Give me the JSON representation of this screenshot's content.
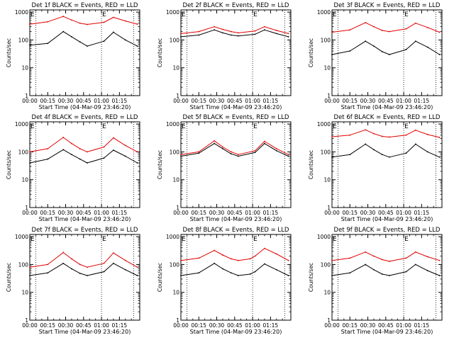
{
  "chart_data": [
    {
      "type": "line",
      "title": "Det 1f BLACK = Events, RED = LLD",
      "xlabel": "Start Time (04-Mar-09 23:46:20)",
      "ylabel": "Counts/sec",
      "x_tick_labels": [
        "00:00",
        "00:15",
        "00:30",
        "00:45",
        "01:00",
        "01:15"
      ],
      "y_tick_labels": [
        "1",
        "10",
        "100",
        "1000"
      ],
      "ylim": [
        1,
        1200
      ],
      "yscale": "log",
      "grid": false,
      "markers": [
        "E",
        "E"
      ],
      "series": [
        {
          "color": "#000000",
          "x": [
            0,
            15,
            28,
            35,
            42,
            48,
            62,
            70,
            80,
            90
          ],
          "y": [
            65,
            75,
            200,
            130,
            85,
            60,
            90,
            190,
            100,
            60
          ]
        },
        {
          "color": "#e00000",
          "x": [
            0,
            15,
            28,
            35,
            42,
            48,
            62,
            70,
            80,
            90
          ],
          "y": [
            370,
            450,
            700,
            520,
            400,
            360,
            430,
            650,
            480,
            370
          ]
        }
      ]
    },
    {
      "type": "line",
      "title": "Det 2f BLACK = Events, RED = LLD",
      "xlabel": "Start Time (04-Mar-09 23:46:20)",
      "ylabel": "Counts/sec",
      "x_tick_labels": [
        "00:00",
        "00:15",
        "00:30",
        "00:45",
        "01:00",
        "01:15"
      ],
      "y_tick_labels": [
        "1",
        "10",
        "100",
        "1000"
      ],
      "ylim": [
        1,
        1200
      ],
      "yscale": "log",
      "grid": false,
      "markers": [
        "E",
        "E"
      ],
      "series": [
        {
          "color": "#000000",
          "x": [
            0,
            15,
            28,
            35,
            42,
            48,
            62,
            70,
            80,
            90
          ],
          "y": [
            130,
            150,
            230,
            180,
            150,
            140,
            160,
            230,
            170,
            130
          ]
        },
        {
          "color": "#e00000",
          "x": [
            0,
            15,
            28,
            35,
            42,
            48,
            62,
            70,
            80,
            90
          ],
          "y": [
            170,
            200,
            300,
            240,
            200,
            180,
            210,
            300,
            220,
            170
          ]
        }
      ]
    },
    {
      "type": "line",
      "title": "Det 3f BLACK = Events, RED = LLD",
      "xlabel": "Start Time (04-Mar-09 23:46:20)",
      "ylabel": "Counts/sec",
      "x_tick_labels": [
        "00:00",
        "00:15",
        "00:30",
        "00:45",
        "01:00",
        "01:15"
      ],
      "y_tick_labels": [
        "1",
        "10",
        "100",
        "1000"
      ],
      "ylim": [
        1,
        1200
      ],
      "yscale": "log",
      "grid": false,
      "markers": [
        "E",
        "E"
      ],
      "series": [
        {
          "color": "#000000",
          "x": [
            0,
            15,
            28,
            35,
            42,
            48,
            62,
            70,
            80,
            90
          ],
          "y": [
            30,
            40,
            90,
            60,
            38,
            30,
            45,
            90,
            55,
            30
          ]
        },
        {
          "color": "#e00000",
          "x": [
            0,
            15,
            28,
            35,
            42,
            48,
            62,
            70,
            80,
            90
          ],
          "y": [
            190,
            230,
            420,
            300,
            220,
            200,
            250,
            400,
            280,
            190
          ]
        }
      ]
    },
    {
      "type": "line",
      "title": "Det 4f BLACK = Events, RED = LLD",
      "xlabel": "Start Time (04-Mar-09 23:46:20)",
      "ylabel": "Counts/sec",
      "x_tick_labels": [
        "00:00",
        "00:15",
        "00:30",
        "00:45",
        "01:00",
        "01:15"
      ],
      "y_tick_labels": [
        "1",
        "10",
        "100",
        "1000"
      ],
      "ylim": [
        1,
        1200
      ],
      "yscale": "log",
      "grid": false,
      "markers": [
        "E",
        "E"
      ],
      "series": [
        {
          "color": "#000000",
          "x": [
            0,
            15,
            28,
            35,
            42,
            48,
            62,
            70,
            80,
            90
          ],
          "y": [
            40,
            55,
            120,
            80,
            55,
            40,
            60,
            115,
            70,
            40
          ]
        },
        {
          "color": "#e00000",
          "x": [
            0,
            15,
            28,
            35,
            42,
            48,
            62,
            70,
            80,
            90
          ],
          "y": [
            100,
            130,
            330,
            200,
            130,
            100,
            150,
            320,
            170,
            100
          ]
        }
      ]
    },
    {
      "type": "line",
      "title": "Det 5f BLACK = Events, RED = LLD",
      "xlabel": "Start Time (04-Mar-09 23:46:20)",
      "ylabel": "Counts/sec",
      "x_tick_labels": [
        "00:00",
        "00:15",
        "00:30",
        "00:45",
        "01:00",
        "01:15"
      ],
      "y_tick_labels": [
        "1",
        "10",
        "100",
        "1000"
      ],
      "ylim": [
        1,
        1200
      ],
      "yscale": "log",
      "grid": false,
      "markers": [
        "E",
        "E"
      ],
      "series": [
        {
          "color": "#000000",
          "x": [
            0,
            15,
            28,
            35,
            42,
            48,
            62,
            70,
            80,
            90
          ],
          "y": [
            70,
            90,
            200,
            130,
            85,
            70,
            95,
            200,
            110,
            70
          ]
        },
        {
          "color": "#e00000",
          "x": [
            0,
            15,
            28,
            35,
            42,
            48,
            62,
            70,
            80,
            90
          ],
          "y": [
            80,
            100,
            250,
            150,
            100,
            80,
            110,
            240,
            130,
            80
          ]
        }
      ]
    },
    {
      "type": "line",
      "title": "Det 6f BLACK = Events, RED = LLD",
      "xlabel": "Start Time (04-Mar-09 23:46:20)",
      "ylabel": "Counts/sec",
      "x_tick_labels": [
        "00:00",
        "00:15",
        "00:30",
        "00:45",
        "01:00",
        "01:15"
      ],
      "y_tick_labels": [
        "1",
        "10",
        "100",
        "1000"
      ],
      "ylim": [
        1,
        1200
      ],
      "yscale": "log",
      "grid": false,
      "markers": [
        "E",
        "E"
      ],
      "series": [
        {
          "color": "#000000",
          "x": [
            0,
            15,
            28,
            35,
            42,
            48,
            62,
            70,
            80,
            90
          ],
          "y": [
            65,
            80,
            190,
            120,
            80,
            65,
            90,
            190,
            100,
            65
          ]
        },
        {
          "color": "#e00000",
          "x": [
            0,
            15,
            28,
            35,
            42,
            48,
            62,
            70,
            80,
            90
          ],
          "y": [
            350,
            400,
            620,
            450,
            360,
            340,
            400,
            600,
            420,
            330
          ]
        }
      ]
    },
    {
      "type": "line",
      "title": "Det 7f BLACK = Events, RED = LLD",
      "xlabel": "Start Time (04-Mar-09 23:46:20)",
      "ylabel": "Counts/sec",
      "x_tick_labels": [
        "00:00",
        "00:15",
        "00:30",
        "00:45",
        "01:00",
        "01:15"
      ],
      "y_tick_labels": [
        "1",
        "10",
        "100",
        "1000"
      ],
      "ylim": [
        1,
        1200
      ],
      "yscale": "log",
      "grid": false,
      "markers": [
        "E",
        "E"
      ],
      "series": [
        {
          "color": "#000000",
          "x": [
            0,
            15,
            28,
            35,
            42,
            48,
            62,
            70,
            80,
            90
          ],
          "y": [
            40,
            50,
            110,
            70,
            48,
            40,
            55,
            110,
            65,
            40
          ]
        },
        {
          "color": "#e00000",
          "x": [
            0,
            15,
            28,
            35,
            42,
            48,
            62,
            70,
            80,
            90
          ],
          "y": [
            80,
            100,
            270,
            160,
            100,
            80,
            110,
            260,
            140,
            80
          ]
        }
      ]
    },
    {
      "type": "line",
      "title": "Det 8f BLACK = Events, RED = LLD",
      "xlabel": "Start Time (04-Mar-09 23:46:20)",
      "ylabel": "Counts/sec",
      "x_tick_labels": [
        "00:00",
        "00:15",
        "00:30",
        "00:45",
        "01:00",
        "01:15"
      ],
      "y_tick_labels": [
        "1",
        "10",
        "100",
        "1000"
      ],
      "ylim": [
        1,
        1200
      ],
      "yscale": "log",
      "grid": false,
      "markers": [
        "E",
        "E"
      ],
      "series": [
        {
          "color": "#000000",
          "x": [
            0,
            15,
            28,
            35,
            42,
            48,
            58,
            62,
            70,
            80,
            90
          ],
          "y": [
            40,
            50,
            110,
            70,
            50,
            40,
            45,
            55,
            105,
            65,
            40
          ]
        },
        {
          "color": "#e00000",
          "x": [
            0,
            15,
            28,
            35,
            42,
            48,
            58,
            62,
            70,
            80,
            90
          ],
          "y": [
            140,
            170,
            320,
            220,
            160,
            140,
            160,
            200,
            380,
            240,
            140
          ]
        }
      ]
    },
    {
      "type": "line",
      "title": "Det 9f BLACK = Events, RED = LLD",
      "xlabel": "Start Time (04-Mar-09 23:46:20)",
      "ylabel": "Counts/sec",
      "x_tick_labels": [
        "00:00",
        "00:15",
        "00:30",
        "00:45",
        "01:00",
        "01:15"
      ],
      "y_tick_labels": [
        "1",
        "10",
        "100",
        "1000"
      ],
      "ylim": [
        1,
        1200
      ],
      "yscale": "log",
      "grid": false,
      "markers": [
        "E",
        "E"
      ],
      "series": [
        {
          "color": "#000000",
          "x": [
            0,
            15,
            28,
            35,
            42,
            48,
            62,
            70,
            80,
            90
          ],
          "y": [
            40,
            50,
            100,
            65,
            45,
            40,
            55,
            100,
            60,
            40
          ]
        },
        {
          "color": "#e00000",
          "x": [
            0,
            15,
            28,
            35,
            42,
            48,
            62,
            70,
            80,
            90
          ],
          "y": [
            140,
            170,
            280,
            200,
            150,
            130,
            170,
            280,
            190,
            140
          ]
        }
      ]
    }
  ]
}
